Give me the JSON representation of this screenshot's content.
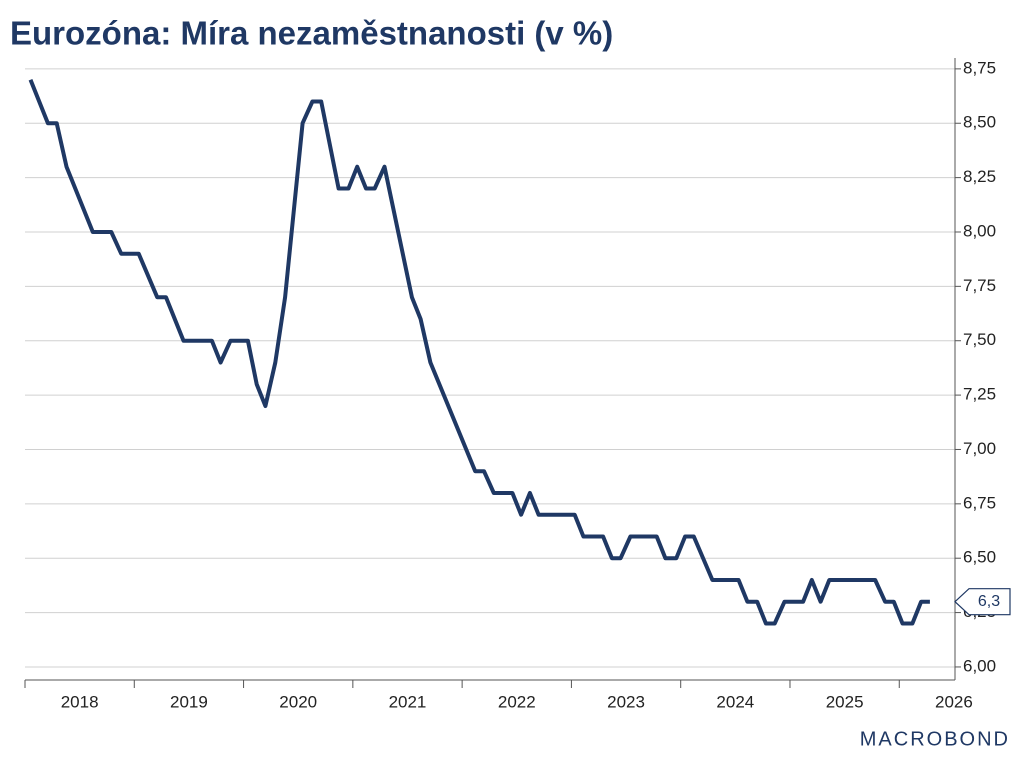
{
  "chart_data": {
    "type": "line",
    "title": "Eurozóna: Míra nezaměstnanosti (v %)",
    "x": [
      2018.05,
      2018.21,
      2018.29,
      2018.38,
      2018.62,
      2018.79,
      2018.88,
      2019.04,
      2019.21,
      2019.29,
      2019.45,
      2019.71,
      2019.79,
      2019.88,
      2020.04,
      2020.12,
      2020.2,
      2020.29,
      2020.38,
      2020.54,
      2020.63,
      2020.71,
      2020.87,
      2020.96,
      2021.04,
      2021.12,
      2021.2,
      2021.29,
      2021.54,
      2021.62,
      2021.71,
      2022.12,
      2022.2,
      2022.29,
      2022.46,
      2022.54,
      2022.62,
      2022.7,
      2023.03,
      2023.11,
      2023.29,
      2023.37,
      2023.45,
      2023.54,
      2023.78,
      2023.86,
      2023.96,
      2024.04,
      2024.12,
      2024.29,
      2024.53,
      2024.61,
      2024.7,
      2024.78,
      2024.86,
      2024.95,
      2025.12,
      2025.2,
      2025.28,
      2025.36,
      2025.78,
      2025.87,
      2025.95,
      2026.03,
      2026.12,
      2026.2,
      2026.28
    ],
    "series": [
      {
        "name": "Míra nezaměstnanosti",
        "color": "#1f3864",
        "values": [
          8.7,
          8.5,
          8.5,
          8.3,
          8.0,
          8.0,
          7.9,
          7.9,
          7.7,
          7.7,
          7.5,
          7.5,
          7.4,
          7.5,
          7.5,
          7.3,
          7.2,
          7.4,
          7.7,
          8.5,
          8.6,
          8.6,
          8.2,
          8.2,
          8.3,
          8.2,
          8.2,
          8.3,
          7.7,
          7.6,
          7.4,
          6.9,
          6.9,
          6.8,
          6.8,
          6.7,
          6.8,
          6.7,
          6.7,
          6.6,
          6.6,
          6.5,
          6.5,
          6.6,
          6.6,
          6.5,
          6.5,
          6.6,
          6.6,
          6.4,
          6.4,
          6.3,
          6.3,
          6.2,
          6.2,
          6.3,
          6.3,
          6.4,
          6.3,
          6.4,
          6.4,
          6.3,
          6.3,
          6.2,
          6.2,
          6.3,
          6.3
        ]
      }
    ],
    "annotations": [
      {
        "text": "6,3",
        "y": 6.3
      }
    ],
    "xlim": [
      2018,
      2026.51
    ],
    "xticks": [
      2018,
      2019,
      2020,
      2021,
      2022,
      2023,
      2024,
      2025,
      2026
    ],
    "ylim": [
      5.94,
      8.8
    ],
    "yticks": [
      {
        "value": 6.0,
        "label": "6,00"
      },
      {
        "value": 6.25,
        "label": "6,25"
      },
      {
        "value": 6.5,
        "label": "6,50"
      },
      {
        "value": 6.75,
        "label": "6,75"
      },
      {
        "value": 7.0,
        "label": "7,00"
      },
      {
        "value": 7.25,
        "label": "7,25"
      },
      {
        "value": 7.5,
        "label": "7,50"
      },
      {
        "value": 7.75,
        "label": "7,75"
      },
      {
        "value": 8.0,
        "label": "8,00"
      },
      {
        "value": 8.25,
        "label": "8,25"
      },
      {
        "value": 8.5,
        "label": "8,50"
      },
      {
        "value": 8.75,
        "label": "8,75"
      }
    ],
    "grid": true,
    "source": "MACROBOND"
  }
}
